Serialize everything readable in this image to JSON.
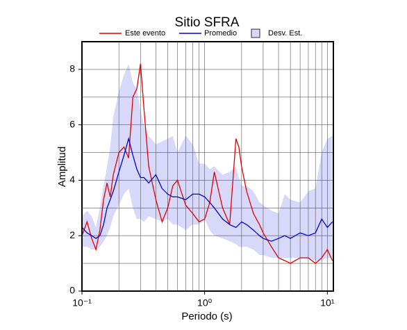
{
  "chart_data": {
    "type": "line",
    "title": "Sitio SFRA",
    "xlabel": "Periodo (s)",
    "ylabel": "Amplitud",
    "xscale": "log",
    "grid": true,
    "legend": "top",
    "xlim": [
      0.1,
      11.2
    ],
    "ylim": [
      0,
      9
    ],
    "xticks": [
      {
        "value": 0.1,
        "label": "10⁻¹"
      },
      {
        "value": 1,
        "label": "10⁰"
      },
      {
        "value": 10,
        "label": "10¹"
      }
    ],
    "xminorticks": [
      0.2,
      0.3,
      0.4,
      0.5,
      0.6,
      0.7,
      0.8,
      0.9,
      2,
      3,
      4,
      5,
      6,
      7,
      8,
      9
    ],
    "yticks": [
      0,
      2,
      4,
      6,
      8
    ],
    "yminorticks": [
      1,
      3,
      5,
      7
    ],
    "x": [
      0.1,
      0.11,
      0.12,
      0.13,
      0.14,
      0.15,
      0.16,
      0.17,
      0.18,
      0.2,
      0.22,
      0.24,
      0.26,
      0.28,
      0.3,
      0.32,
      0.35,
      0.4,
      0.45,
      0.5,
      0.55,
      0.6,
      0.7,
      0.8,
      0.9,
      1.0,
      1.1,
      1.2,
      1.4,
      1.6,
      1.8,
      1.9,
      2.0,
      2.2,
      2.5,
      2.8,
      3.0,
      3.5,
      4,
      4.5,
      5,
      6,
      7,
      8,
      9,
      10,
      11
    ],
    "band": {
      "name": "Desv. Est.",
      "color": "#d8d8fa",
      "upper": [
        2.7,
        2.9,
        2.7,
        2.3,
        3.0,
        3.8,
        4.5,
        5.2,
        6.3,
        7.2,
        7.8,
        8.2,
        7.5,
        7.3,
        6.5,
        6.0,
        5.6,
        5.3,
        5.4,
        5.5,
        5.6,
        5.0,
        5.6,
        5.3,
        4.6,
        4.6,
        4.4,
        4.5,
        4.2,
        4.3,
        4.5,
        4.1,
        3.8,
        3.8,
        3.6,
        3.2,
        3.1,
        2.9,
        2.8,
        3.5,
        3.3,
        3.2,
        3.6,
        3.7,
        5.0,
        5.5,
        5.6
      ],
      "lower": [
        1.6,
        1.6,
        1.5,
        1.5,
        1.6,
        1.8,
        2.0,
        2.3,
        2.7,
        3.1,
        3.5,
        3.7,
        3.0,
        2.6,
        2.6,
        2.5,
        2.7,
        2.6,
        2.5,
        2.6,
        2.4,
        2.4,
        2.2,
        2.4,
        2.4,
        2.6,
        2.2,
        2.0,
        1.9,
        1.8,
        1.7,
        1.6,
        1.6,
        1.6,
        1.5,
        1.3,
        1.3,
        1.2,
        1.2,
        1.2,
        1.2,
        1.2,
        1.2,
        1.1,
        1.1,
        1.2,
        1.2
      ]
    },
    "series": [
      {
        "name": "Este evento",
        "color": "#e00000",
        "values": [
          2.0,
          2.5,
          1.9,
          1.5,
          2.2,
          3.3,
          3.9,
          3.4,
          4.2,
          5.0,
          5.2,
          4.8,
          7.0,
          7.3,
          8.2,
          6.6,
          4.5,
          3.3,
          2.5,
          3.0,
          3.8,
          4.0,
          3.1,
          2.8,
          2.5,
          2.6,
          3.2,
          4.3,
          3.0,
          2.4,
          5.5,
          5.2,
          4.5,
          3.6,
          2.8,
          2.4,
          2.1,
          1.6,
          1.2,
          1.1,
          1.0,
          1.2,
          1.2,
          1.0,
          1.2,
          1.5,
          1.1
        ]
      },
      {
        "name": "Promedio",
        "color": "#0000d0",
        "values": [
          2.3,
          2.1,
          2.0,
          1.9,
          2.0,
          2.4,
          3.0,
          3.3,
          3.6,
          4.3,
          4.9,
          5.5,
          4.9,
          4.4,
          4.1,
          4.1,
          3.9,
          4.2,
          3.7,
          3.5,
          3.4,
          3.4,
          3.3,
          3.5,
          3.5,
          3.4,
          3.2,
          3.0,
          2.6,
          2.4,
          2.3,
          2.4,
          2.5,
          2.4,
          2.2,
          2.0,
          1.9,
          1.8,
          1.9,
          2.0,
          1.9,
          2.1,
          2.0,
          2.1,
          2.6,
          2.3,
          2.5
        ]
      }
    ]
  }
}
